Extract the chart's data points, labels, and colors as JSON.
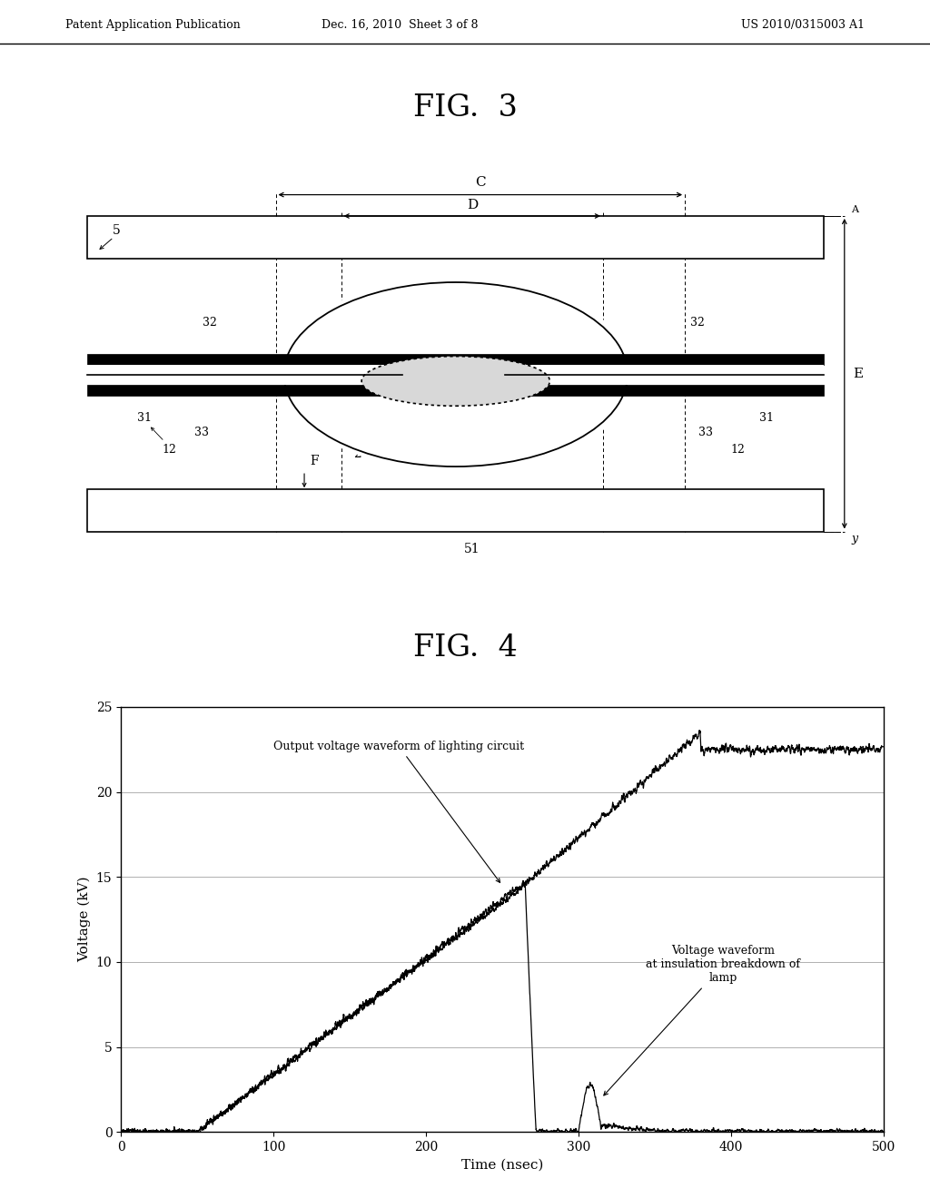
{
  "bg_color": "#ffffff",
  "header_left": "Patent Application Publication",
  "header_center": "Dec. 16, 2010  Sheet 3 of 8",
  "header_right": "US 2010/0315003 A1",
  "fig3_title": "FIG.  3",
  "fig4_title": "FIG.  4",
  "fig4_xlabel": "Time (nsec)",
  "fig4_ylabel": "Voltage (kV)",
  "fig4_xlim": [
    0,
    500
  ],
  "fig4_ylim": [
    0,
    25
  ],
  "fig4_xticks": [
    0,
    100,
    200,
    300,
    400,
    500
  ],
  "fig4_yticks": [
    0,
    5,
    10,
    15,
    20,
    25
  ],
  "annotation1": "Output voltage waveform of lighting circuit",
  "annotation2": "Voltage waveform\nat insulation breakdown of\nlamp",
  "text_color": "#000000",
  "grid_color": "#b0b0b0"
}
